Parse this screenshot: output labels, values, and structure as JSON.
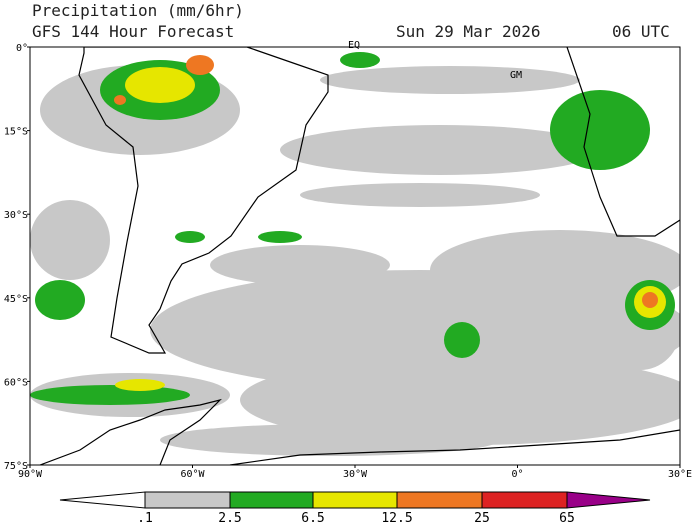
{
  "header": {
    "title": "Precipitation (mm/6hr)",
    "subtitle": "GFS 144 Hour Forecast",
    "date": "Sun 29 Mar 2026",
    "time": "06 UTC"
  },
  "map": {
    "lat_labels": [
      "0°",
      "15°S",
      "30°S",
      "45°S",
      "60°S",
      "75°S"
    ],
    "lon_labels": [
      "90°W",
      "60°W",
      "30°W",
      "0°",
      "30°E"
    ],
    "place_labels": [
      "EQ",
      "GM"
    ]
  },
  "colorbar": {
    "labels": [
      ".1",
      "2.5",
      "6.5",
      "12.5",
      "25",
      "65"
    ]
  }
}
